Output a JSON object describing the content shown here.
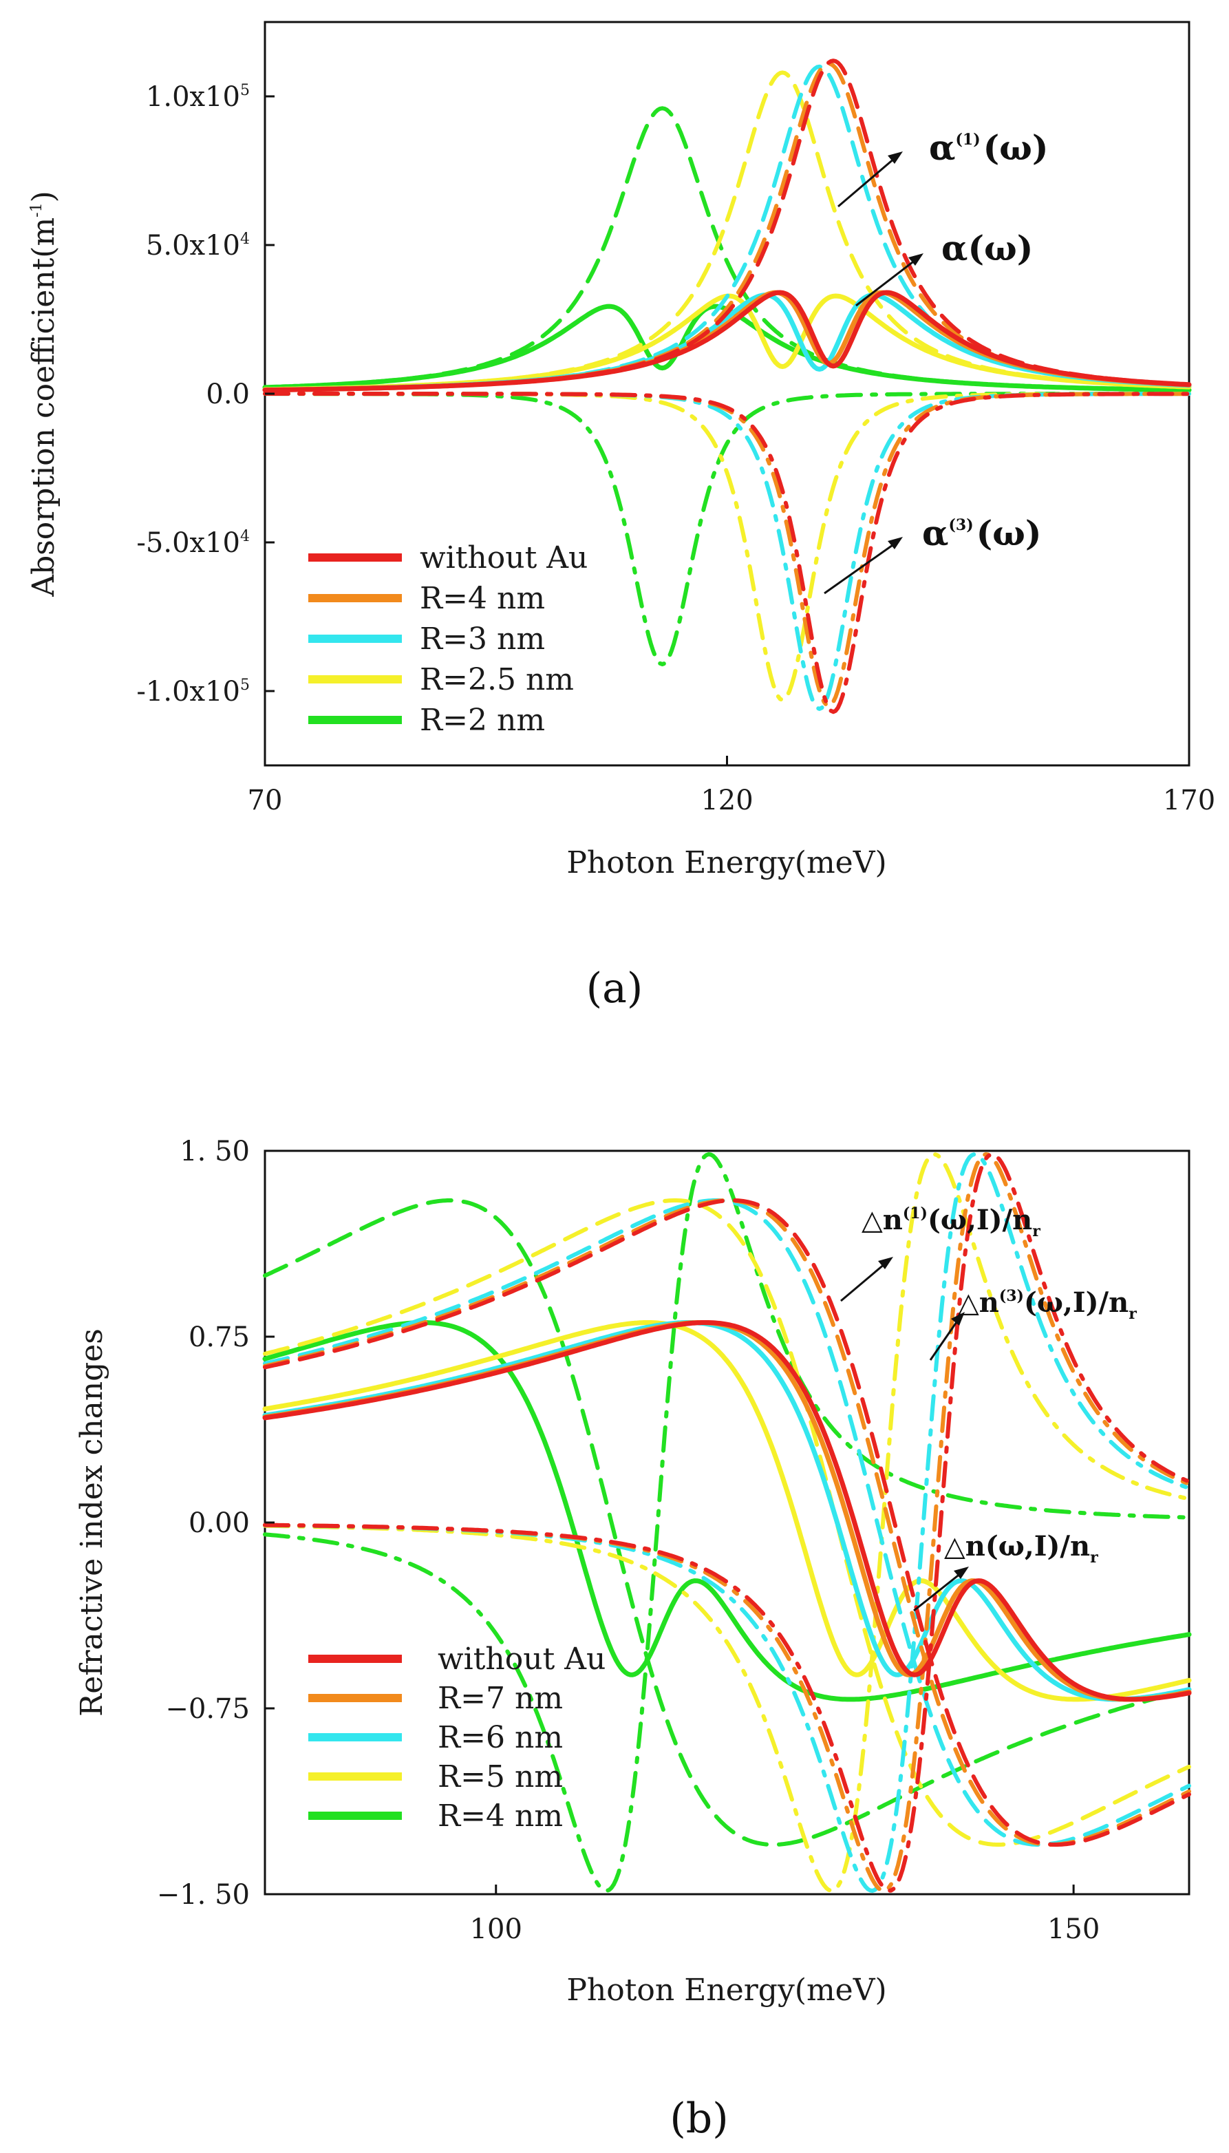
{
  "chart_data": [
    {
      "type": "line",
      "panel_label": "(a)",
      "xlabel": "Photon Energy(meV)",
      "ylabel": "Absorption coefficient(m",
      "ylabel_sup": "-1",
      "ylabel_close": ")",
      "xlim": [
        70,
        170
      ],
      "ylim": [
        -125000,
        125000
      ],
      "x_ticks": [
        70,
        120,
        170
      ],
      "x_tick_labels": [
        "70",
        "120",
        "170"
      ],
      "y_ticks": [
        100000,
        50000,
        0,
        -50000,
        -100000
      ],
      "y_tick_labels": [
        {
          "base": "1.0x10",
          "exp": "5"
        },
        {
          "base": "5.0x10",
          "exp": "4"
        },
        {
          "base": "0.0",
          "exp": ""
        },
        {
          "base": "-5.0x10",
          "exp": "4"
        },
        {
          "base": "-1.0x10",
          "exp": "5"
        }
      ],
      "legend": [
        "without Au",
        "R=4 nm",
        "R=3 nm",
        "R=2.5 nm",
        "R=2 nm"
      ],
      "legend_position": "lower-left",
      "annotations": [
        {
          "base": "α",
          "sup": "(1)",
          "rest": "(ω)"
        },
        {
          "base": "α",
          "sup": "",
          "rest": "(ω)"
        },
        {
          "base": "α",
          "sup": "(3)",
          "rest": "(ω)"
        }
      ],
      "series": [
        {
          "name": "without Au",
          "color": "#e8231f",
          "E0": 131.5,
          "gamma": 6.5,
          "A1": 112000,
          "A3": -107000
        },
        {
          "name": "R=4 nm",
          "color": "#f28a1c",
          "E0": 131.0,
          "gamma": 6.5,
          "A1": 111000,
          "A3": -105000
        },
        {
          "name": "R=3 nm",
          "color": "#33e6ee",
          "E0": 130.0,
          "gamma": 6.5,
          "A1": 110000,
          "A3": -106000
        },
        {
          "name": "R=2.5 nm",
          "color": "#f5f02a",
          "E0": 126.0,
          "gamma": 6.5,
          "A1": 108000,
          "A3": -103000
        },
        {
          "name": "R=2 nm",
          "color": "#22e021",
          "E0": 113.0,
          "gamma": 6.5,
          "A1": 96000,
          "A3": -91000
        }
      ]
    },
    {
      "type": "line",
      "panel_label": "(b)",
      "xlabel": "Photon Energy(meV)",
      "ylabel": "Refractive index changes",
      "xlim": [
        80,
        160
      ],
      "ylim": [
        -1.5,
        1.5
      ],
      "x_ticks": [
        100,
        150
      ],
      "x_tick_labels": [
        "100",
        "150"
      ],
      "y_ticks": [
        1.5,
        0.75,
        0,
        -0.75,
        -1.5
      ],
      "y_tick_labels": [
        "1. 50",
        "0.75",
        "0.00",
        "−0.75",
        "−1. 50"
      ],
      "legend": [
        "without Au",
        "R=7 nm",
        "R=6 nm",
        "R=5 nm",
        "R=4 nm"
      ],
      "legend_position": "lower-left",
      "annotations": [
        {
          "pre": "△n",
          "sup": "(1)",
          "rest": "(ω,I)/n",
          "sub": "r"
        },
        {
          "pre": "△n",
          "sup": "(3)",
          "rest": "(ω,I)/n",
          "sub": "r"
        },
        {
          "pre": "△n",
          "sup": "",
          "rest": "(ω,I)/n",
          "sub": "r"
        }
      ],
      "series": [
        {
          "name": "without Au",
          "color": "#e8231f",
          "E0": 134.5,
          "gamma": 14,
          "N1": 1.3,
          "N3": -1.3
        },
        {
          "name": "R=7 nm",
          "color": "#f28a1c",
          "E0": 134.0,
          "gamma": 14,
          "N1": 1.3,
          "N3": -1.3
        },
        {
          "name": "R=6 nm",
          "color": "#33e6ee",
          "E0": 133.0,
          "gamma": 14,
          "N1": 1.3,
          "N3": -1.3
        },
        {
          "name": "R=5 nm",
          "color": "#f5f02a",
          "E0": 129.5,
          "gamma": 14,
          "N1": 1.3,
          "N3": -1.3
        },
        {
          "name": "R=4 nm",
          "color": "#22e021",
          "E0": 110.0,
          "gamma": 14,
          "N1": 1.3,
          "N3": -1.3
        }
      ]
    }
  ]
}
